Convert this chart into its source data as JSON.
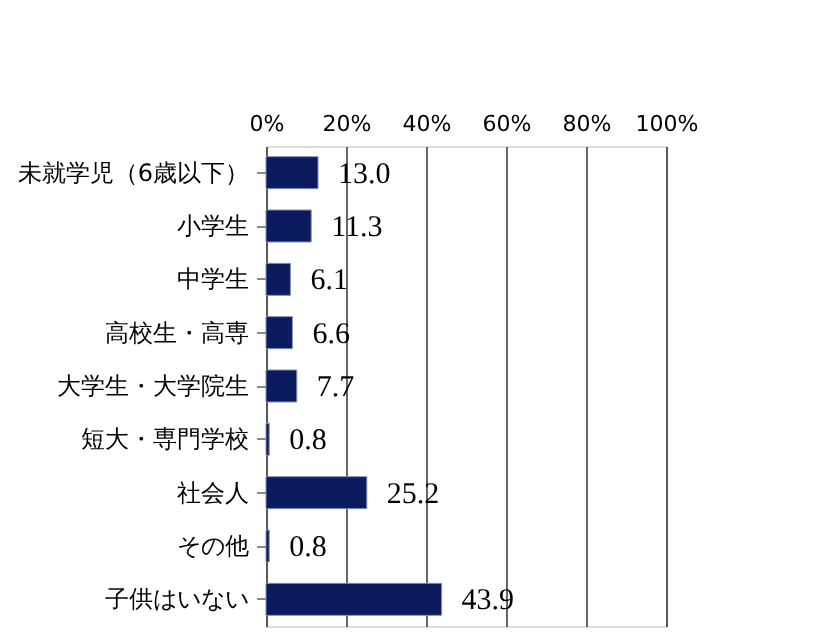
{
  "chart_data": {
    "type": "bar",
    "orientation": "horizontal",
    "categories": [
      "未就学児（6歳以下）",
      "小学生",
      "中学生",
      "高校生・高専",
      "大学生・大学院生",
      "短大・専門学校",
      "社会人",
      "その他",
      "子供はいない"
    ],
    "values": [
      13.0,
      11.3,
      6.1,
      6.6,
      7.7,
      0.8,
      25.2,
      0.8,
      43.9
    ],
    "value_labels": [
      "13.0",
      "11.3",
      "6.1",
      "6.6",
      "7.7",
      "0.8",
      "25.2",
      "0.8",
      "43.9"
    ],
    "color": "#0c1a5e",
    "grid": "x",
    "xlim": [
      0,
      100
    ],
    "xticks": [
      {
        "value": 0,
        "label": "0%"
      },
      {
        "value": 20,
        "label": "20%"
      },
      {
        "value": 40,
        "label": "40%"
      },
      {
        "value": 60,
        "label": "60%"
      },
      {
        "value": 80,
        "label": "80%"
      },
      {
        "value": 100,
        "label": "100%"
      }
    ]
  }
}
